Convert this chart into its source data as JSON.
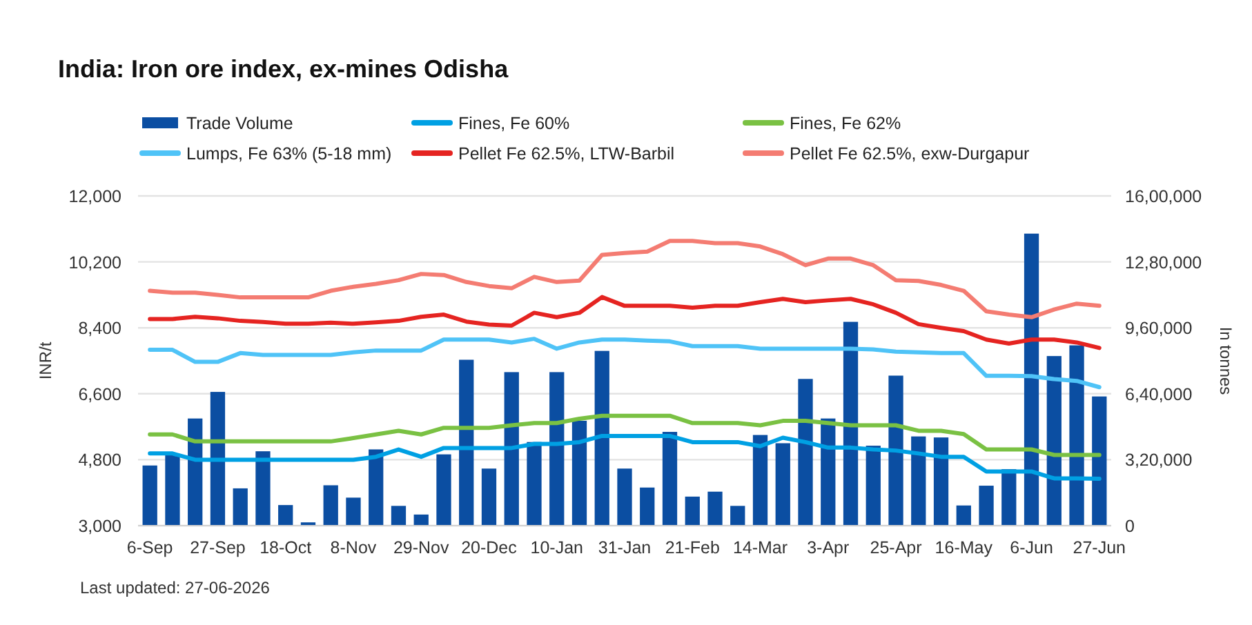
{
  "chart_data": {
    "type": "bar",
    "title": "India: Iron ore index, ex-mines Odisha",
    "ylabel": "INR/t",
    "y2label": "In tonnes",
    "categories": [
      "6-Sep",
      null,
      null,
      "27-Sep",
      null,
      null,
      "18-Oct",
      null,
      null,
      "8-Nov",
      null,
      null,
      "29-Nov",
      null,
      null,
      "20-Dec",
      null,
      null,
      "10-Jan",
      null,
      null,
      "31-Jan",
      null,
      null,
      "21-Feb",
      null,
      null,
      "14-Mar",
      null,
      null,
      "3-Apr",
      null,
      null,
      "25-Apr",
      null,
      null,
      "16-May",
      null,
      null,
      "6-Jun",
      null,
      null,
      "27-Jun"
    ],
    "series": [
      {
        "name": "Trade Volume",
        "axis": "y2",
        "color": "#0b4ea2",
        "values": [
          292000,
          348000,
          520000,
          649000,
          181000,
          361000,
          100000,
          16000,
          196000,
          136000,
          370000,
          96000,
          54000,
          346000,
          805000,
          277000,
          745000,
          406000,
          745000,
          509000,
          848000,
          277000,
          185000,
          455000,
          141000,
          165000,
          96000,
          440000,
          400000,
          712000,
          520000,
          989000,
          388000,
          728000,
          433000,
          428000,
          98000,
          194000,
          274000,
          1417000,
          823000,
          875000,
          627000
        ]
      },
      {
        "name": "Fines, Fe 60%",
        "type": "line",
        "color": "#00a0e3",
        "values": [
          4970,
          4970,
          4800,
          4800,
          4800,
          4800,
          4800,
          4800,
          4800,
          4800,
          4880,
          5080,
          4880,
          5120,
          5120,
          5120,
          5120,
          5230,
          5230,
          5280,
          5450,
          5450,
          5450,
          5450,
          5280,
          5280,
          5280,
          5170,
          5400,
          5280,
          5130,
          5130,
          5080,
          5050,
          4970,
          4880,
          4880,
          4480,
          4480,
          4480,
          4290,
          4290,
          4280
        ]
      },
      {
        "name": "Fines, Fe 62%",
        "type": "line",
        "color": "#7ac143",
        "values": [
          5490,
          5490,
          5300,
          5300,
          5300,
          5300,
          5300,
          5300,
          5300,
          5390,
          5490,
          5590,
          5490,
          5670,
          5670,
          5670,
          5740,
          5800,
          5800,
          5920,
          6000,
          6000,
          6000,
          6000,
          5800,
          5800,
          5800,
          5740,
          5860,
          5860,
          5800,
          5740,
          5740,
          5740,
          5590,
          5590,
          5500,
          5080,
          5080,
          5080,
          4930,
          4930,
          4930
        ]
      },
      {
        "name": "Lumps, Fe 63% (5-18 mm)",
        "type": "line",
        "color": "#4fc3f7",
        "values": [
          7800,
          7800,
          7470,
          7470,
          7710,
          7660,
          7660,
          7660,
          7660,
          7730,
          7780,
          7780,
          7780,
          8080,
          8080,
          8080,
          8000,
          8100,
          7830,
          8000,
          8080,
          8080,
          8050,
          8030,
          7900,
          7900,
          7900,
          7830,
          7830,
          7830,
          7830,
          7830,
          7810,
          7750,
          7730,
          7710,
          7710,
          7090,
          7090,
          7080,
          7000,
          6950,
          6780
        ]
      },
      {
        "name": "Pellet Fe 62.5%, LTW-Barbil",
        "type": "line",
        "color": "#e52421",
        "values": [
          8640,
          8640,
          8700,
          8660,
          8590,
          8560,
          8510,
          8510,
          8540,
          8510,
          8550,
          8590,
          8700,
          8760,
          8570,
          8490,
          8460,
          8810,
          8690,
          8810,
          9240,
          9000,
          9000,
          9000,
          8950,
          9000,
          9000,
          9100,
          9190,
          9100,
          9150,
          9190,
          9040,
          8810,
          8500,
          8400,
          8310,
          8080,
          7970,
          8080,
          8080,
          8000,
          7850
        ]
      },
      {
        "name": "Pellet Fe  62.5%, exw-Durgapur",
        "type": "line",
        "color": "#f47c72",
        "values": [
          9410,
          9360,
          9360,
          9300,
          9230,
          9230,
          9230,
          9230,
          9410,
          9520,
          9600,
          9700,
          9870,
          9840,
          9650,
          9540,
          9480,
          9790,
          9650,
          9690,
          10390,
          10440,
          10480,
          10770,
          10770,
          10710,
          10710,
          10620,
          10410,
          10110,
          10290,
          10290,
          10110,
          9700,
          9680,
          9570,
          9410,
          8850,
          8760,
          8690,
          8900,
          9060,
          9000
        ]
      }
    ],
    "ylim": [
      3000,
      12000
    ],
    "yticks": [
      {
        "value": 3000,
        "label": "3,000"
      },
      {
        "value": 4800,
        "label": "4,800"
      },
      {
        "value": 6600,
        "label": "6,600"
      },
      {
        "value": 8400,
        "label": "8,400"
      },
      {
        "value": 10200,
        "label": "10,200"
      },
      {
        "value": 12000,
        "label": "12,000"
      }
    ],
    "y2lim": [
      0,
      1600000
    ],
    "y2ticks": [
      0,
      {
        "value": 320000,
        "label": "3,20,000"
      },
      {
        "value": 640000,
        "label": "6,40,000"
      },
      {
        "value": 960000,
        "label": "9,60,000"
      },
      {
        "value": 1280000,
        "label": "12,80,000"
      },
      {
        "value": 1600000,
        "label": "16,00,000"
      }
    ],
    "grid": "y",
    "legend": "top",
    "line_style": "solid",
    "marker": "none",
    "annotations": [
      "Last updated: 27-06-2026"
    ]
  }
}
